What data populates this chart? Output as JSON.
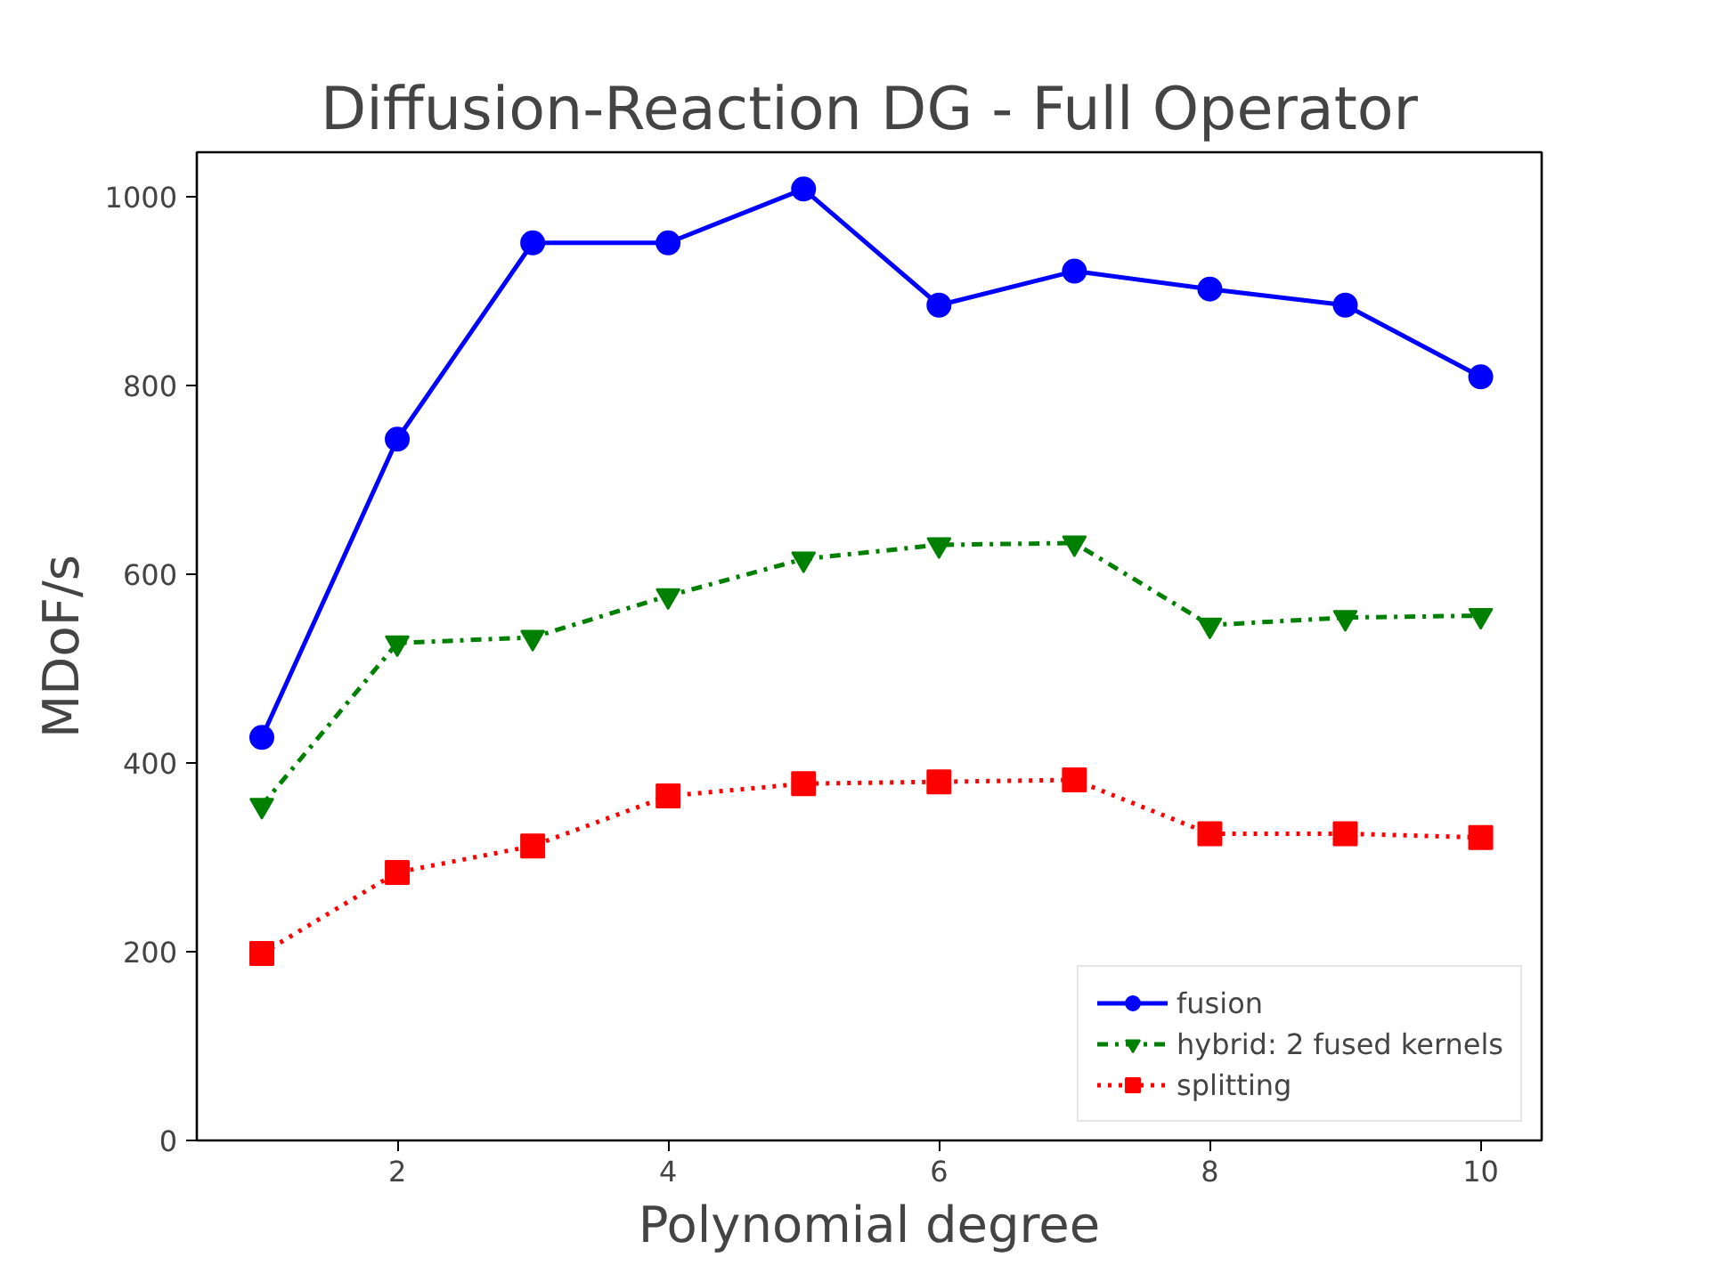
{
  "chart_data": {
    "type": "line",
    "title": "Diffusion-Reaction DG - Full Operator",
    "xlabel": "Polynomial degree",
    "ylabel": "MDoF/s",
    "x": [
      1,
      2,
      3,
      4,
      5,
      6,
      7,
      8,
      9,
      10
    ],
    "series": [
      {
        "name": "fusion",
        "color": "#0000ff",
        "marker": "circle",
        "line_style": "solid",
        "values": [
          427,
          743,
          951,
          951,
          1008,
          885,
          921,
          902,
          885,
          809
        ]
      },
      {
        "name": "hybrid: 2 fused kernels",
        "color": "#008000",
        "marker": "triangle",
        "line_style": "dashdot",
        "values": [
          355,
          527,
          533,
          577,
          616,
          631,
          633,
          546,
          554,
          556
        ]
      },
      {
        "name": "splitting",
        "color": "#ff0000",
        "marker": "square",
        "line_style": "dotted",
        "values": [
          198,
          284,
          312,
          365,
          378,
          380,
          382,
          325,
          325,
          321
        ]
      }
    ],
    "xlim": [
      0.52,
      10.45
    ],
    "ylim": [
      0,
      1047
    ],
    "xticks": [
      2,
      4,
      6,
      8,
      10
    ],
    "yticks": [
      0,
      200,
      400,
      600,
      800,
      1000
    ],
    "grid": false,
    "legend": "bottom right"
  }
}
